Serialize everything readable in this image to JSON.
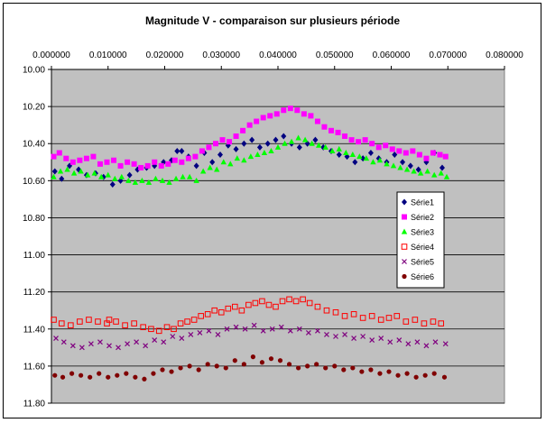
{
  "chart_data": {
    "type": "scatter",
    "title": "Magnitude V - comparaison sur plusieurs période",
    "xlabel": "",
    "ylabel": "",
    "x_axis_position": "top",
    "y_axis_reversed": true,
    "xlim": [
      0,
      0.08
    ],
    "ylim": [
      10.0,
      11.8
    ],
    "x_ticks": [
      "0.000000",
      "0.010000",
      "0.020000",
      "0.030000",
      "0.040000",
      "0.050000",
      "0.060000",
      "0.070000",
      "0.080000"
    ],
    "y_ticks": [
      "10.00",
      "10.20",
      "10.40",
      "10.60",
      "10.80",
      "11.00",
      "11.20",
      "11.40",
      "11.60",
      "11.80"
    ],
    "grid": true,
    "plot_background": "#c0c0c0",
    "legend_position": "right",
    "series": [
      {
        "name": "Série1",
        "color": "#000080",
        "marker": "diamond",
        "x": [
          0.0006,
          0.0018,
          0.0032,
          0.0048,
          0.0062,
          0.0078,
          0.0092,
          0.0108,
          0.0122,
          0.0138,
          0.0152,
          0.0168,
          0.0182,
          0.0198,
          0.0212,
          0.0222,
          0.023,
          0.0242,
          0.0256,
          0.027,
          0.0284,
          0.0298,
          0.0312,
          0.0326,
          0.034,
          0.0354,
          0.0368,
          0.0382,
          0.0396,
          0.041,
          0.0424,
          0.0438,
          0.0452,
          0.0466,
          0.048,
          0.0494,
          0.0508,
          0.0522,
          0.0536,
          0.055,
          0.0564,
          0.0578,
          0.0592,
          0.0606,
          0.062,
          0.0634,
          0.0648,
          0.0662,
          0.0676,
          0.069
        ],
        "y": [
          10.55,
          10.59,
          10.52,
          10.54,
          10.57,
          10.56,
          10.58,
          10.62,
          10.6,
          10.57,
          10.54,
          10.53,
          10.52,
          10.5,
          10.49,
          10.44,
          10.44,
          10.47,
          10.52,
          10.45,
          10.5,
          10.46,
          10.41,
          10.43,
          10.4,
          10.38,
          10.42,
          10.4,
          10.38,
          10.36,
          10.4,
          10.42,
          10.4,
          10.38,
          10.42,
          10.44,
          10.46,
          10.47,
          10.5,
          10.48,
          10.45,
          10.48,
          10.5,
          10.46,
          10.5,
          10.52,
          10.54,
          10.5,
          10.45,
          10.53
        ]
      },
      {
        "name": "Série2",
        "color": "#ff00ff",
        "marker": "square",
        "x": [
          0.0004,
          0.0014,
          0.0026,
          0.0038,
          0.005,
          0.0062,
          0.0074,
          0.0086,
          0.0098,
          0.011,
          0.0122,
          0.0134,
          0.0146,
          0.0158,
          0.017,
          0.0182,
          0.0194,
          0.0206,
          0.0218,
          0.023,
          0.0242,
          0.0254,
          0.0266,
          0.0278,
          0.029,
          0.0302,
          0.0314,
          0.0326,
          0.0338,
          0.035,
          0.0362,
          0.0374,
          0.0386,
          0.0398,
          0.041,
          0.0422,
          0.0434,
          0.0446,
          0.0458,
          0.047,
          0.0482,
          0.0494,
          0.0506,
          0.0518,
          0.053,
          0.0542,
          0.0554,
          0.0566,
          0.0578,
          0.059,
          0.0602,
          0.0614,
          0.0626,
          0.0638,
          0.065,
          0.0662,
          0.0674,
          0.0686,
          0.0696
        ],
        "y": [
          10.47,
          10.45,
          10.48,
          10.5,
          10.49,
          10.48,
          10.47,
          10.51,
          10.5,
          10.49,
          10.52,
          10.5,
          10.51,
          10.53,
          10.52,
          10.5,
          10.52,
          10.51,
          10.49,
          10.5,
          10.48,
          10.47,
          10.44,
          10.42,
          10.4,
          10.38,
          10.39,
          10.36,
          10.33,
          10.3,
          10.28,
          10.26,
          10.25,
          10.24,
          10.22,
          10.21,
          10.22,
          10.24,
          10.25,
          10.28,
          10.31,
          10.33,
          10.34,
          10.36,
          10.38,
          10.39,
          10.38,
          10.4,
          10.42,
          10.41,
          10.43,
          10.44,
          10.45,
          10.44,
          10.46,
          10.48,
          10.45,
          10.46,
          10.47
        ]
      },
      {
        "name": "Série3",
        "color": "#00ff00",
        "marker": "triangle",
        "x": [
          0.0004,
          0.0016,
          0.0028,
          0.004,
          0.0052,
          0.0064,
          0.0076,
          0.0088,
          0.01,
          0.0112,
          0.0124,
          0.0136,
          0.0148,
          0.016,
          0.0172,
          0.0184,
          0.0196,
          0.0208,
          0.022,
          0.0232,
          0.0244,
          0.0256,
          0.0268,
          0.028,
          0.0292,
          0.0304,
          0.0316,
          0.0328,
          0.034,
          0.0352,
          0.0364,
          0.0376,
          0.0388,
          0.04,
          0.0412,
          0.0424,
          0.0436,
          0.0448,
          0.046,
          0.0472,
          0.0484,
          0.0496,
          0.0508,
          0.052,
          0.0532,
          0.0544,
          0.0556,
          0.0568,
          0.058,
          0.0592,
          0.0604,
          0.0616,
          0.0628,
          0.064,
          0.0652,
          0.0664,
          0.0676,
          0.0688,
          0.0698
        ],
        "y": [
          10.58,
          10.55,
          10.54,
          10.56,
          10.55,
          10.57,
          10.56,
          10.58,
          10.57,
          10.59,
          10.58,
          10.6,
          10.61,
          10.6,
          10.61,
          10.59,
          10.6,
          10.61,
          10.59,
          10.58,
          10.58,
          10.6,
          10.55,
          10.53,
          10.54,
          10.5,
          10.51,
          10.48,
          10.49,
          10.47,
          10.46,
          10.45,
          10.44,
          10.42,
          10.4,
          10.39,
          10.37,
          10.38,
          10.4,
          10.41,
          10.42,
          10.44,
          10.43,
          10.45,
          10.46,
          10.47,
          10.48,
          10.5,
          10.49,
          10.51,
          10.52,
          10.53,
          10.54,
          10.55,
          10.56,
          10.55,
          10.57,
          10.56,
          10.58
        ]
      },
      {
        "name": "Série4",
        "color": "#ff0000",
        "marker": "open-square",
        "x": [
          0.0004,
          0.0018,
          0.0034,
          0.005,
          0.0066,
          0.0082,
          0.0098,
          0.0102,
          0.0114,
          0.013,
          0.0146,
          0.0162,
          0.0176,
          0.019,
          0.0204,
          0.0216,
          0.0228,
          0.024,
          0.0252,
          0.0264,
          0.0276,
          0.0288,
          0.03,
          0.0312,
          0.0324,
          0.0336,
          0.0348,
          0.036,
          0.0372,
          0.0384,
          0.0396,
          0.0408,
          0.042,
          0.0432,
          0.0444,
          0.0456,
          0.047,
          0.0486,
          0.0502,
          0.0518,
          0.0534,
          0.055,
          0.0566,
          0.0582,
          0.0596,
          0.061,
          0.0626,
          0.0642,
          0.0658,
          0.0674,
          0.0688
        ],
        "y": [
          11.35,
          11.37,
          11.38,
          11.36,
          11.35,
          11.36,
          11.37,
          11.35,
          11.36,
          11.38,
          11.37,
          11.39,
          11.4,
          11.41,
          11.39,
          11.4,
          11.37,
          11.36,
          11.35,
          11.33,
          11.32,
          11.3,
          11.31,
          11.29,
          11.28,
          11.3,
          11.27,
          11.26,
          11.25,
          11.27,
          11.28,
          11.25,
          11.24,
          11.25,
          11.24,
          11.26,
          11.28,
          11.3,
          11.31,
          11.33,
          11.32,
          11.34,
          11.33,
          11.35,
          11.34,
          11.33,
          11.36,
          11.35,
          11.37,
          11.36,
          11.37
        ]
      },
      {
        "name": "Série5",
        "color": "#800080",
        "marker": "x",
        "x": [
          0.0008,
          0.0022,
          0.0038,
          0.0054,
          0.007,
          0.0086,
          0.0102,
          0.0118,
          0.0134,
          0.015,
          0.0166,
          0.0182,
          0.0198,
          0.0214,
          0.023,
          0.0246,
          0.0262,
          0.0278,
          0.0294,
          0.031,
          0.0326,
          0.0342,
          0.0358,
          0.0374,
          0.039,
          0.0406,
          0.0422,
          0.0438,
          0.0454,
          0.047,
          0.0486,
          0.0502,
          0.0518,
          0.0534,
          0.055,
          0.0566,
          0.0582,
          0.0598,
          0.0614,
          0.063,
          0.0646,
          0.0662,
          0.0678,
          0.0696
        ],
        "y": [
          11.45,
          11.47,
          11.49,
          11.5,
          11.48,
          11.47,
          11.49,
          11.5,
          11.48,
          11.47,
          11.49,
          11.46,
          11.47,
          11.44,
          11.45,
          11.43,
          11.42,
          11.41,
          11.43,
          11.4,
          11.39,
          11.4,
          11.38,
          11.41,
          11.4,
          11.39,
          11.41,
          11.4,
          11.42,
          11.41,
          11.43,
          11.44,
          11.43,
          11.45,
          11.44,
          11.46,
          11.45,
          11.47,
          11.46,
          11.48,
          11.47,
          11.49,
          11.47,
          11.48
        ]
      },
      {
        "name": "Série6",
        "color": "#800000",
        "marker": "circle",
        "x": [
          0.0006,
          0.002,
          0.0036,
          0.0052,
          0.0068,
          0.0084,
          0.01,
          0.0116,
          0.0132,
          0.0148,
          0.0164,
          0.018,
          0.0196,
          0.0212,
          0.0228,
          0.0244,
          0.026,
          0.0276,
          0.0292,
          0.0308,
          0.0324,
          0.034,
          0.0356,
          0.0372,
          0.0388,
          0.0404,
          0.042,
          0.0436,
          0.0452,
          0.0468,
          0.0484,
          0.05,
          0.0516,
          0.0532,
          0.0548,
          0.0564,
          0.058,
          0.0596,
          0.0612,
          0.0628,
          0.0644,
          0.066,
          0.0676,
          0.0694
        ],
        "y": [
          11.65,
          11.66,
          11.64,
          11.65,
          11.66,
          11.64,
          11.66,
          11.65,
          11.64,
          11.66,
          11.67,
          11.64,
          11.62,
          11.63,
          11.61,
          11.6,
          11.62,
          11.59,
          11.6,
          11.61,
          11.57,
          11.59,
          11.55,
          11.58,
          11.56,
          11.57,
          11.59,
          11.61,
          11.6,
          11.59,
          11.61,
          11.6,
          11.62,
          11.61,
          11.63,
          11.62,
          11.64,
          11.63,
          11.65,
          11.64,
          11.66,
          11.65,
          11.64,
          11.66
        ]
      }
    ]
  }
}
